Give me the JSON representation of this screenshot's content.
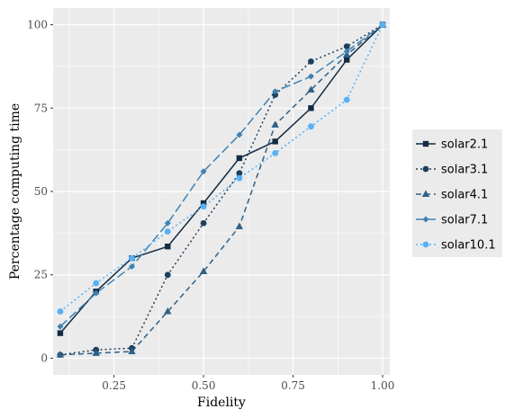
{
  "chart_data": {
    "type": "line",
    "xlabel": "Fidelity",
    "ylabel": "Percentage computing time",
    "xlim": [
      0.08,
      1.02
    ],
    "ylim": [
      -5,
      105
    ],
    "x_ticks": [
      0.25,
      0.5,
      0.75,
      1.0
    ],
    "x_tick_labels": [
      "0.25",
      "0.50",
      "0.75",
      "1.00"
    ],
    "y_ticks": [
      0,
      25,
      50,
      75,
      100
    ],
    "y_tick_labels": [
      "0",
      "25",
      "50",
      "75",
      "100"
    ],
    "grid": true,
    "legend_position": "right",
    "x": [
      0.1,
      0.2,
      0.3,
      0.4,
      0.5,
      0.6,
      0.7,
      0.8,
      0.9,
      1.0
    ],
    "series": [
      {
        "name": "solar2.1",
        "values": [
          7.5,
          20,
          30,
          33.5,
          46.5,
          60,
          65,
          75,
          89.5,
          100
        ],
        "color": "#132B43",
        "dash": "solid",
        "marker": "square"
      },
      {
        "name": "solar3.1",
        "values": [
          1,
          2.5,
          3,
          25,
          40.5,
          55.5,
          79,
          89,
          93.5,
          100
        ],
        "color": "#1D3F5E",
        "dash": "dotted",
        "marker": "circle"
      },
      {
        "name": "solar4.1",
        "values": [
          1,
          1.5,
          2,
          14,
          26,
          39.5,
          70,
          80.5,
          91,
          100
        ],
        "color": "#2E6188",
        "dash": "dashed",
        "marker": "triangle"
      },
      {
        "name": "solar7.1",
        "values": [
          9.5,
          19.5,
          27.5,
          40.5,
          56,
          67,
          80,
          84.5,
          92,
          100
        ],
        "color": "#3E82B4",
        "dash": "longdash",
        "marker": "diamond"
      },
      {
        "name": "solar10.1",
        "values": [
          14,
          22.5,
          30,
          38,
          45.5,
          54,
          61.5,
          69.5,
          77.5,
          100
        ],
        "color": "#56B1F7",
        "dash": "dotted",
        "marker": "circle"
      }
    ]
  }
}
